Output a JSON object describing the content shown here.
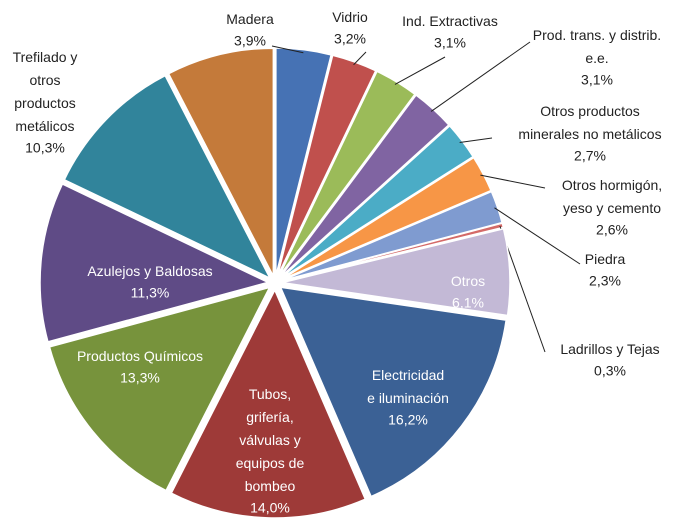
{
  "chart_data": {
    "type": "pie",
    "categories": [
      "Madera",
      "Vidrio",
      "Ind. Extractivas",
      "Prod. trans. y distrib.\ne.e.",
      "Otros productos\nminerales no metálicos",
      "Otros hormigón,\nyeso y cemento",
      "Piedra",
      "Ladrillos y Tejas",
      "Otros",
      "Electricidad\ne iluminación",
      "Tubos,\ngrifería,\nválvulas y\nequipos de\nbombeo",
      "Productos Químicos",
      "Azulejos y Baldosas",
      "Trefilado y\notros\nproductos\nmetálicos",
      null
    ],
    "values": [
      3.9,
      3.2,
      3.1,
      3.1,
      2.7,
      2.6,
      2.3,
      0.3,
      6.1,
      16.2,
      14.0,
      13.3,
      11.3,
      10.3,
      7.6
    ],
    "value_labels": [
      "3,9%",
      "3,2%",
      "3,1%",
      "3,1%",
      "2,7%",
      "2,6%",
      "2,3%",
      "0,3%",
      "6,1%",
      "16,2%",
      "14,0%",
      "13,3%",
      "11,3%",
      "10,3%",
      null
    ],
    "colors": [
      "#4672b4",
      "#c0504d",
      "#9bbb59",
      "#8064a2",
      "#4bacc6",
      "#f79646",
      "#7f9bd0",
      "#d46a68",
      "#c3b9d6",
      "#3b6195",
      "#9e3a38",
      "#77933c",
      "#5f4b86",
      "#31849b",
      "#c47a3a"
    ]
  }
}
